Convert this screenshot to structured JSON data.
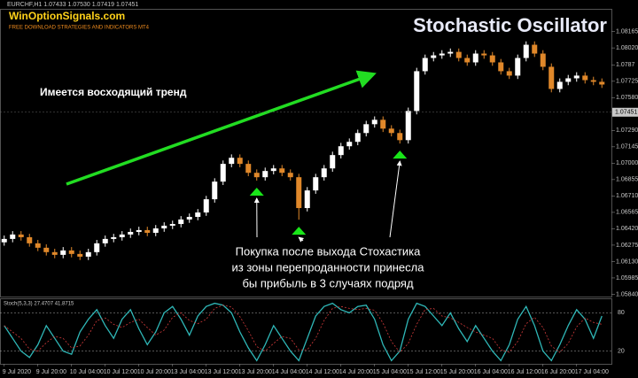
{
  "header": {
    "symbol": "EURCHF,H1 1.07433 1.07530 1.07419 1.07451",
    "logo": "WinOptionSignals.com",
    "logo_subtitle": "FREE DOWNLOAD STRATEGIES AND INDICATORS MT4"
  },
  "chart_data": [
    {
      "type": "candlestick",
      "title": "Stochastic Oscillator",
      "annotations": [
        "Имеется восходящий тренд",
        "Покупка после выхода Стохастика",
        "из зоны перепроданности принесла",
        "бы прибыль в 3 случаях подряд"
      ],
      "categories": [
        "9 Jul 2020",
        null,
        null,
        null,
        "9 Jul 20:00",
        null,
        null,
        null,
        "10 Jul 04:00",
        null,
        null,
        null,
        "10 Jul 12:00",
        null,
        null,
        null,
        "10 Jul 20:00",
        null,
        null,
        null,
        "13 Jul 04:00",
        null,
        null,
        null,
        "13 Jul 12:00",
        null,
        null,
        null,
        "13 Jul 20:00",
        null,
        null,
        null,
        "14 Jul 04:00",
        null,
        null,
        null,
        "14 Jul 12:00",
        null,
        null,
        null,
        "14 Jul 20:00",
        null,
        null,
        null,
        "15 Jul 04:00",
        null,
        null,
        null,
        "15 Jul 12:00",
        null,
        null,
        null,
        "15 Jul 20:00",
        null,
        null,
        null,
        "16 Jul 04:00",
        null,
        null,
        null,
        "16 Jul 12:00",
        null,
        null,
        null,
        "16 Jul 20:00",
        null,
        null,
        null,
        "17 Jul 04:00",
        null,
        null,
        null
      ],
      "open": [
        1.063,
        1.0633,
        1.06369,
        1.06345,
        1.06291,
        1.06252,
        1.06213,
        1.06189,
        1.06228,
        1.06197,
        1.06173,
        1.06213,
        1.06291,
        1.0633,
        1.06345,
        1.06369,
        1.06392,
        1.06408,
        1.06384,
        1.06423,
        1.06447,
        1.06462,
        1.06502,
        1.06525,
        1.06564,
        1.06681,
        1.06837,
        1.06994,
        1.07048,
        1.06994,
        1.06915,
        1.06876,
        1.06931,
        1.06954,
        1.06915,
        1.06876,
        1.06603,
        1.06759,
        1.06876,
        1.06954,
        1.07072,
        1.0715,
        1.07189,
        1.07267,
        1.07345,
        1.07384,
        1.07306,
        1.07267,
        1.07204,
        1.07462,
        1.07814,
        1.07931,
        1.07954,
        1.0797,
        1.07985,
        1.07931,
        1.07892,
        1.0797,
        1.07954,
        1.07892,
        1.07814,
        1.07775,
        1.07931,
        1.08048,
        1.0797,
        1.07853,
        1.07657,
        1.0772,
        1.07751,
        1.07775,
        1.07735,
        1.0772
      ],
      "high": [
        1.0636,
        1.06399,
        1.06399,
        1.06375,
        1.06321,
        1.06282,
        1.06243,
        1.06258,
        1.06258,
        1.06227,
        1.06243,
        1.06321,
        1.0636,
        1.06375,
        1.06399,
        1.06422,
        1.06438,
        1.06438,
        1.06453,
        1.06477,
        1.06492,
        1.06532,
        1.06555,
        1.06594,
        1.06711,
        1.06867,
        1.07024,
        1.07078,
        1.07078,
        1.07024,
        1.06945,
        1.06961,
        1.06984,
        1.06984,
        1.06945,
        1.06906,
        1.06789,
        1.06906,
        1.06984,
        1.07102,
        1.0718,
        1.07219,
        1.07297,
        1.07375,
        1.07414,
        1.07414,
        1.07336,
        1.07297,
        1.07492,
        1.07844,
        1.07961,
        1.07984,
        1.08,
        1.08015,
        1.08015,
        1.07961,
        1.08,
        1.08,
        1.07984,
        1.07922,
        1.07844,
        1.07961,
        1.08078,
        1.08078,
        1.08,
        1.07883,
        1.0775,
        1.07781,
        1.07805,
        1.07805,
        1.07765,
        1.0775
      ],
      "low": [
        1.0627,
        1.063,
        1.06315,
        1.06261,
        1.06222,
        1.06183,
        1.06159,
        1.06159,
        1.06167,
        1.06143,
        1.06143,
        1.06183,
        1.06261,
        1.063,
        1.06315,
        1.06339,
        1.06362,
        1.06354,
        1.06354,
        1.06393,
        1.06417,
        1.06432,
        1.06472,
        1.06495,
        1.06534,
        1.06651,
        1.06807,
        1.06964,
        1.06964,
        1.06885,
        1.06846,
        1.06846,
        1.06901,
        1.06885,
        1.06846,
        1.065,
        1.06573,
        1.06729,
        1.06846,
        1.06924,
        1.07042,
        1.0712,
        1.07159,
        1.07237,
        1.07315,
        1.07276,
        1.07237,
        1.07174,
        1.07174,
        1.07432,
        1.07784,
        1.07901,
        1.07924,
        1.0794,
        1.07901,
        1.07862,
        1.07862,
        1.07924,
        1.07862,
        1.07784,
        1.07745,
        1.07745,
        1.07901,
        1.0794,
        1.07823,
        1.07627,
        1.07627,
        1.0769,
        1.07721,
        1.07705,
        1.0769,
        1.07666
      ],
      "close": [
        1.0633,
        1.06369,
        1.06345,
        1.06291,
        1.06252,
        1.06213,
        1.06189,
        1.06228,
        1.06197,
        1.06173,
        1.06213,
        1.06291,
        1.0633,
        1.06345,
        1.06369,
        1.06392,
        1.06408,
        1.06384,
        1.06423,
        1.06447,
        1.06462,
        1.06502,
        1.06525,
        1.06564,
        1.06681,
        1.06837,
        1.06994,
        1.07048,
        1.06994,
        1.06915,
        1.06876,
        1.06931,
        1.06954,
        1.06915,
        1.06876,
        1.06603,
        1.06759,
        1.06876,
        1.06954,
        1.07072,
        1.0715,
        1.07189,
        1.07267,
        1.07345,
        1.07384,
        1.07306,
        1.07267,
        1.07204,
        1.07462,
        1.07814,
        1.07931,
        1.07954,
        1.0797,
        1.07985,
        1.07931,
        1.07892,
        1.0797,
        1.07954,
        1.07892,
        1.07814,
        1.07775,
        1.07931,
        1.08048,
        1.0797,
        1.07853,
        1.07657,
        1.0772,
        1.07751,
        1.07775,
        1.07735,
        1.0772,
        1.07696
      ],
      "up_color": "#ffffff",
      "down_color": "#e0882a",
      "signals": [
        30,
        35,
        47
      ],
      "signal_color": "#19e619",
      "current_price": 1.07451,
      "ylim": [
        1.0582,
        1.0835
      ],
      "yticks": [
        1.08165,
        {
          "value": 1.0802,
          "label": "1.08020"
        },
        1.0787,
        1.07725,
        {
          "value": 1.0758,
          "label": "1.07580"
        },
        {
          "value": 1.0729,
          "label": "1.07290"
        },
        1.07145,
        {
          "value": 1.07,
          "label": "1.07000"
        },
        1.06855,
        {
          "value": 1.0671,
          "label": "1.06710"
        },
        1.06565,
        {
          "value": 1.0642,
          "label": "1.06420"
        },
        1.06275,
        {
          "value": 1.0613,
          "label": "1.06130"
        },
        1.05985,
        {
          "value": 1.0584,
          "label": "1.05840"
        }
      ]
    },
    {
      "type": "line",
      "title": "Stoch(5,3,3) 27.4707 41.8715",
      "series": [
        {
          "color": "#2fb8b8",
          "values": [
            60,
            40,
            20,
            10,
            30,
            60,
            40,
            20,
            15,
            50,
            70,
            85,
            60,
            40,
            70,
            85,
            55,
            30,
            50,
            80,
            90,
            70,
            45,
            75,
            90,
            95,
            92,
            80,
            50,
            25,
            5,
            30,
            60,
            40,
            20,
            5,
            40,
            75,
            90,
            95,
            85,
            80,
            90,
            92,
            70,
            30,
            5,
            20,
            70,
            95,
            90,
            75,
            60,
            80,
            55,
            35,
            60,
            40,
            20,
            5,
            30,
            70,
            90,
            60,
            20,
            5,
            30,
            60,
            85,
            70,
            40,
            75
          ]
        },
        {
          "color": "#d23a3a",
          "dashed": true,
          "values": [
            60,
            50,
            40,
            23,
            20,
            33,
            43,
            40,
            25,
            28,
            45,
            68,
            72,
            62,
            57,
            65,
            70,
            57,
            45,
            53,
            73,
            80,
            68,
            63,
            70,
            87,
            92,
            89,
            74,
            52,
            27,
            20,
            32,
            43,
            40,
            22,
            22,
            40,
            68,
            87,
            90,
            87,
            85,
            87,
            84,
            64,
            35,
            18,
            32,
            62,
            85,
            87,
            75,
            72,
            65,
            57,
            50,
            45,
            40,
            22,
            18,
            35,
            63,
            73,
            57,
            28,
            18,
            32,
            58,
            72,
            65,
            62
          ]
        }
      ],
      "ylim": [
        0,
        100
      ],
      "yticks": [
        20,
        80
      ]
    }
  ]
}
